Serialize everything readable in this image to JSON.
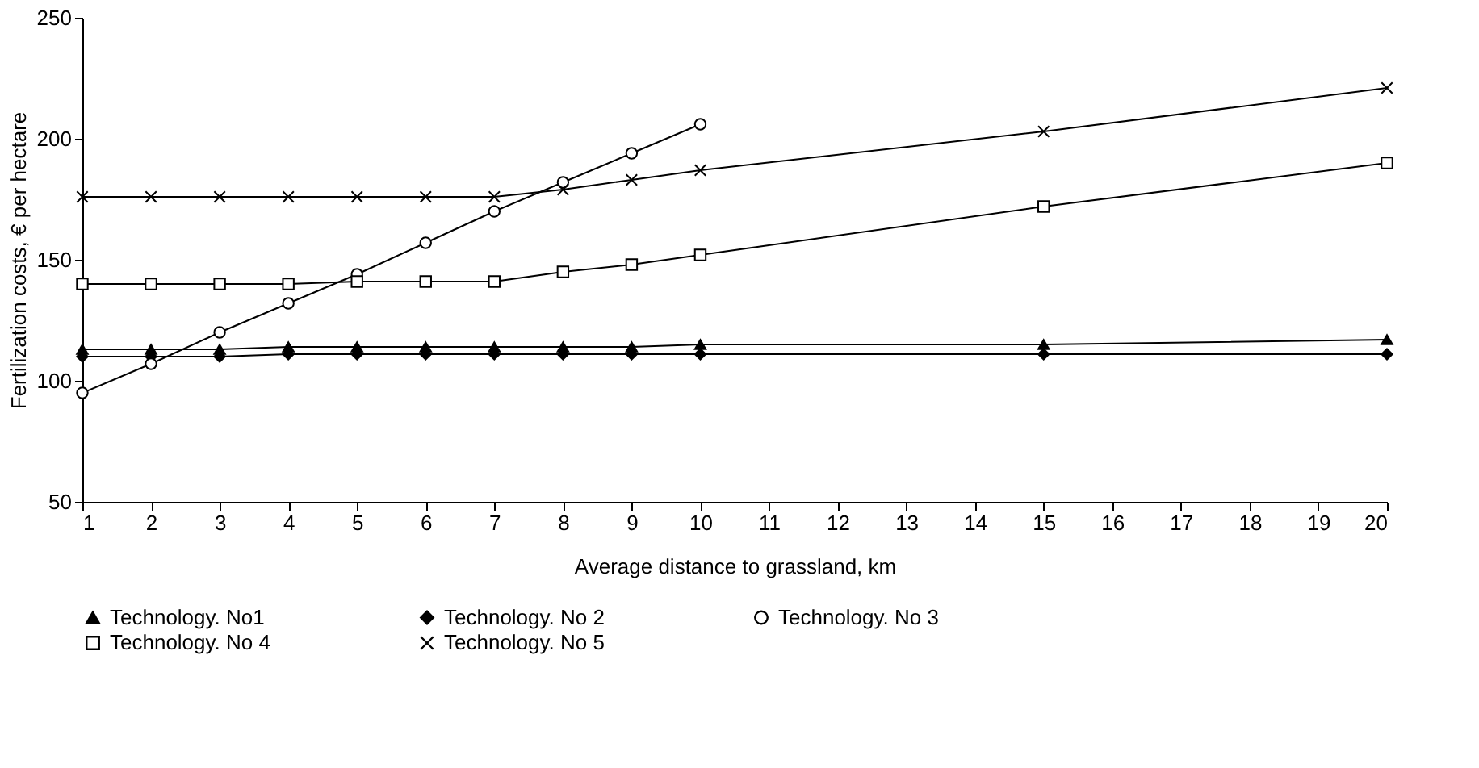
{
  "chart_data": {
    "type": "line",
    "xlabel": "Average distance to grassland, km",
    "ylabel": "Fertilization costs, € per hectare",
    "x": [
      1,
      2,
      3,
      4,
      5,
      6,
      7,
      8,
      9,
      10,
      15,
      20
    ],
    "xlim": [
      1,
      20
    ],
    "xticks": [
      1,
      2,
      3,
      4,
      5,
      6,
      7,
      8,
      9,
      10,
      11,
      12,
      13,
      14,
      15,
      16,
      17,
      18,
      19,
      20
    ],
    "ylim": [
      50,
      250
    ],
    "yticks": [
      50,
      100,
      150,
      200,
      250
    ],
    "grid": false,
    "legend": "bottom",
    "line_style": "solid",
    "series": [
      {
        "name": "Technology. No1",
        "color": "#000000",
        "marker": "triangle",
        "values": [
          113,
          113,
          113,
          114,
          114,
          114,
          114,
          114,
          114,
          115,
          115,
          117
        ]
      },
      {
        "name": "Technology. No 2",
        "color": "#000000",
        "marker": "diamond",
        "values": [
          110,
          110,
          110,
          111,
          111,
          111,
          111,
          111,
          111,
          111,
          111,
          111
        ]
      },
      {
        "name": "Technology. No 3",
        "color": "#000000",
        "marker": "circle",
        "values": [
          95,
          107,
          120,
          132,
          144,
          157,
          170,
          182,
          194,
          206,
          null,
          null
        ]
      },
      {
        "name": "Technology. No 4",
        "color": "#000000",
        "marker": "square",
        "values": [
          140,
          140,
          140,
          140,
          141,
          141,
          141,
          145,
          148,
          152,
          172,
          190
        ]
      },
      {
        "name": "Technology. No 5",
        "color": "#000000",
        "marker": "cross",
        "values": [
          176,
          176,
          176,
          176,
          176,
          176,
          176,
          179,
          183,
          187,
          203,
          221
        ]
      }
    ]
  }
}
